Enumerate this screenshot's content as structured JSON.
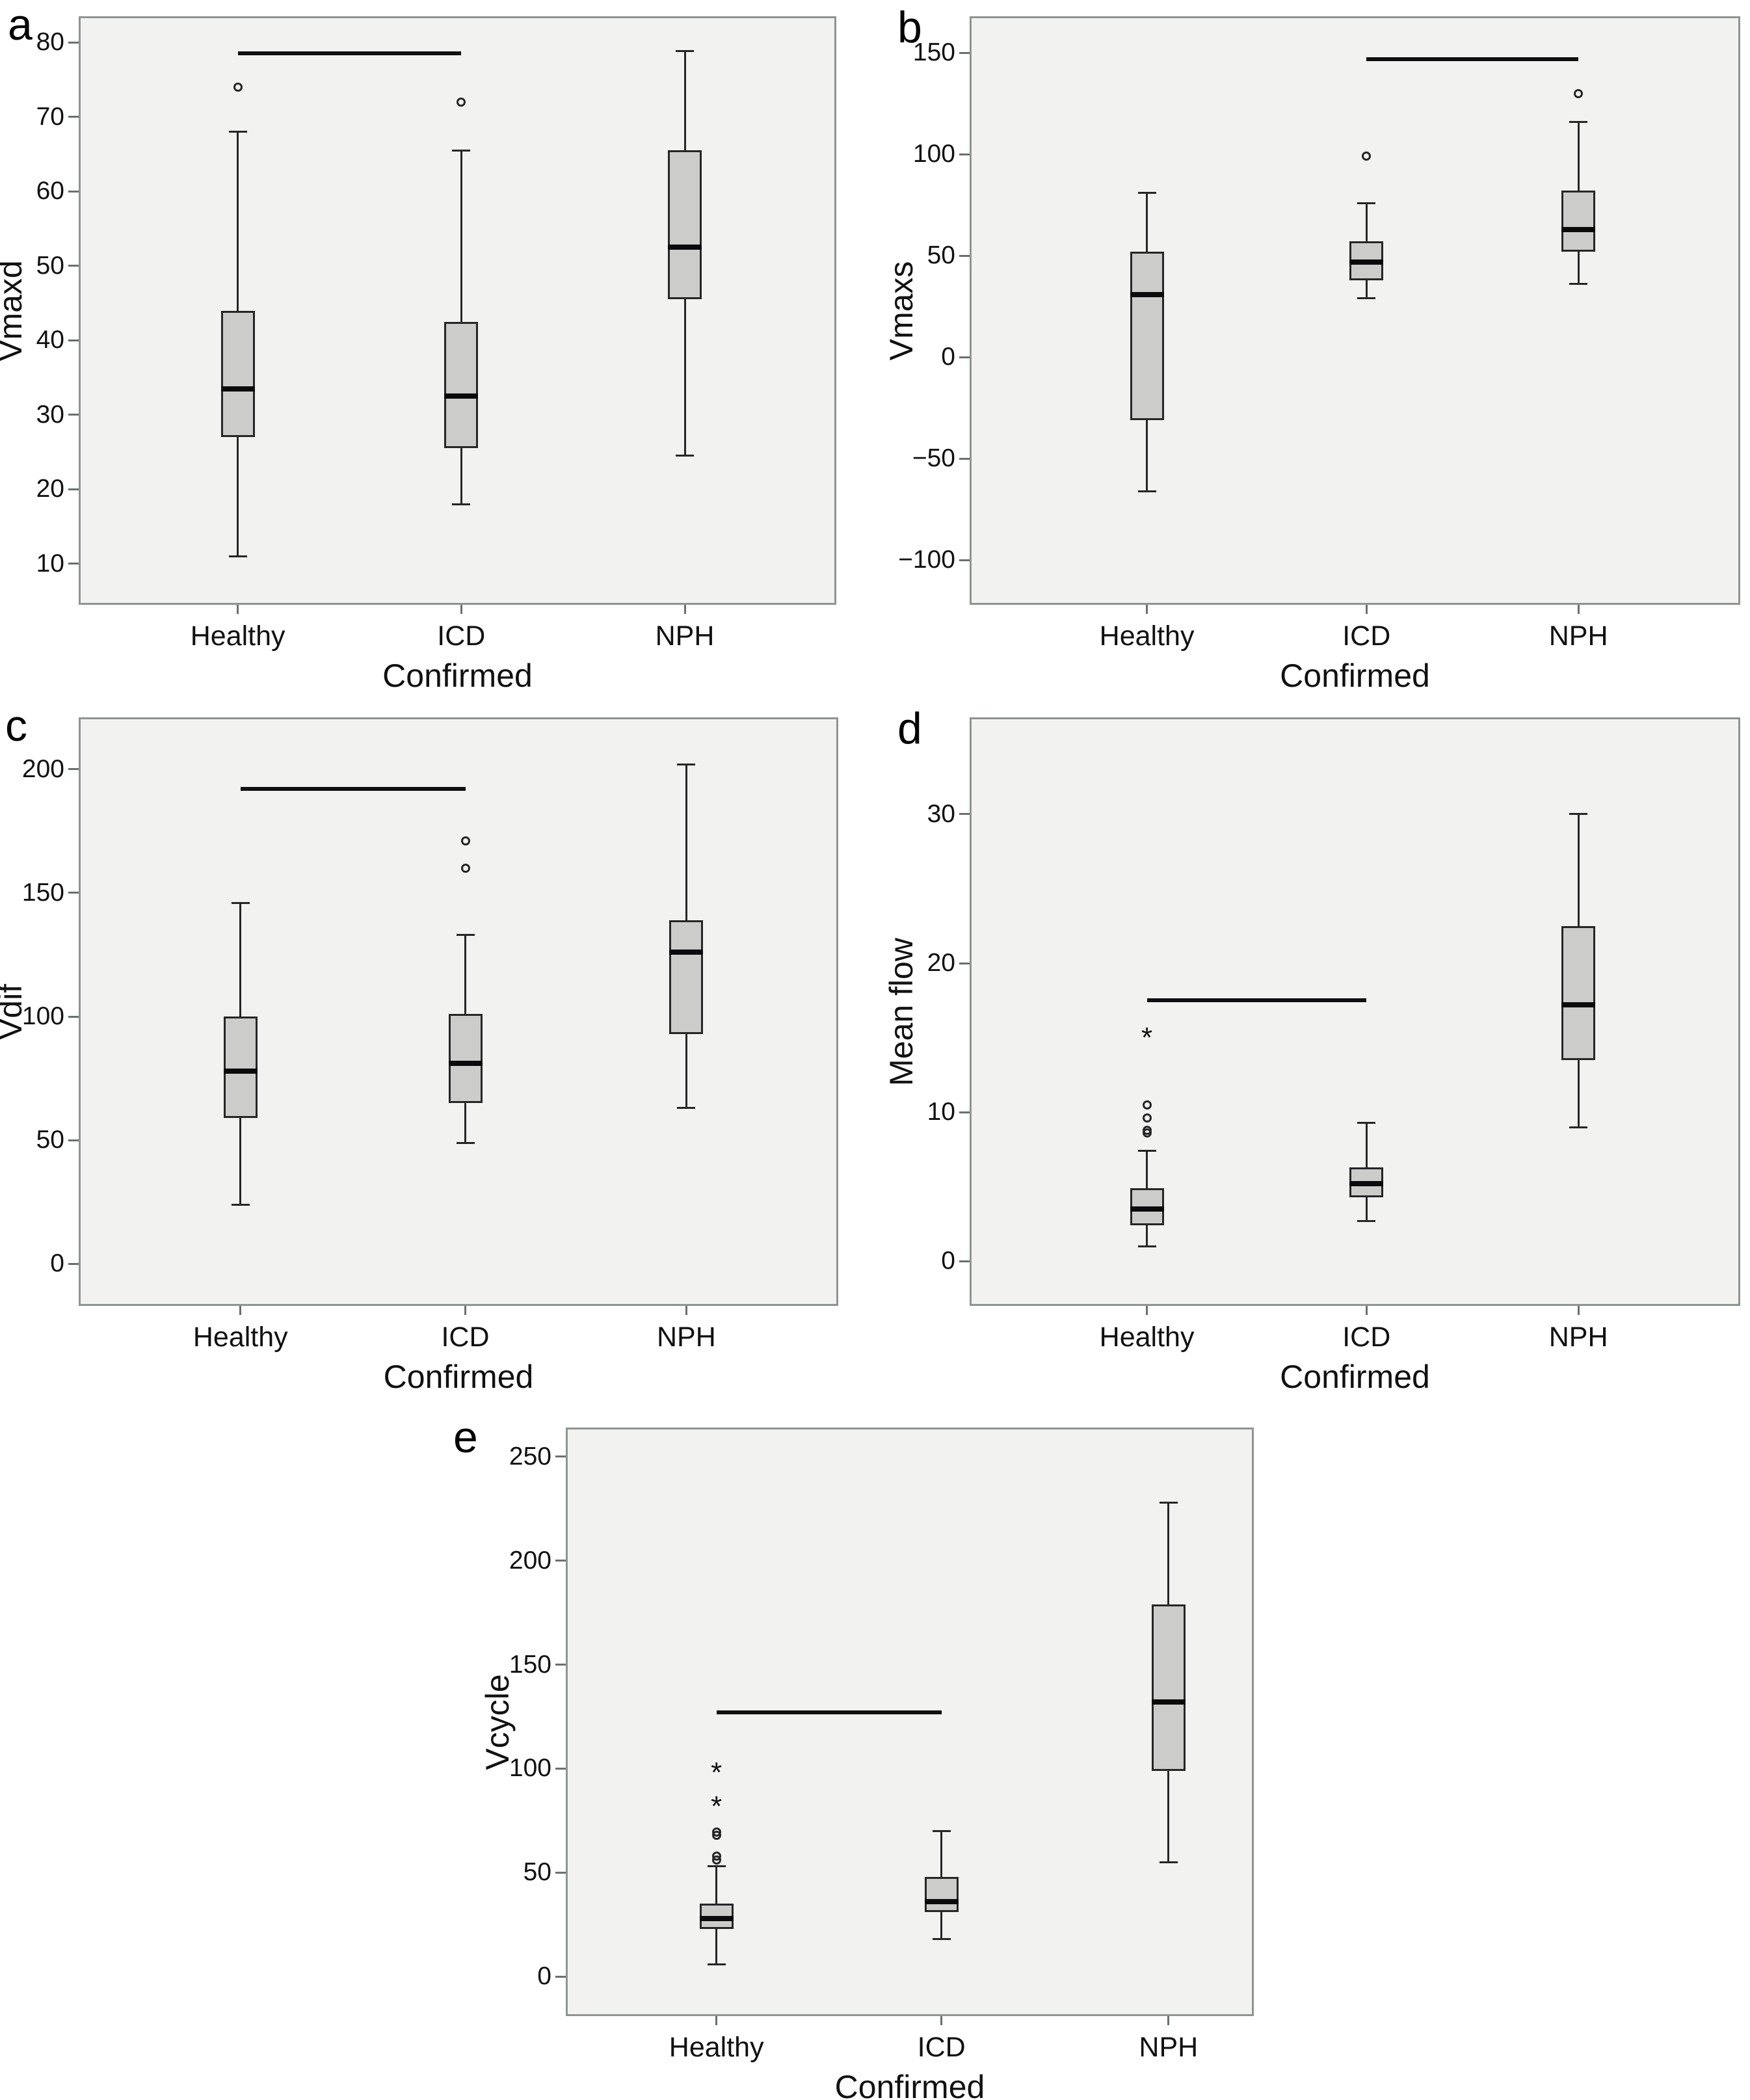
{
  "style": {
    "plot_background": "#f2f2f1",
    "box_fill": "#cccccb",
    "frame_color": "#8f9492",
    "line_color": "#262626",
    "median_color": "#0b0b0b"
  },
  "figure": {
    "xlabel": "Confirmed",
    "categories": [
      "Healthy",
      "ICD",
      "NPH"
    ],
    "panel_letters": [
      "a",
      "b",
      "c",
      "d",
      "e"
    ]
  },
  "chart_data": [
    {
      "panel_label": "a",
      "type": "box",
      "ylabel": "Vmaxd",
      "xlabel": "Confirmed",
      "categories": [
        "Healthy",
        "ICD",
        "NPH"
      ],
      "ylim": [
        4.5,
        83.5
      ],
      "yticks": [
        {
          "value": 80,
          "label": "80"
        },
        {
          "value": 70,
          "label": "70"
        },
        {
          "value": 60,
          "label": "60"
        },
        {
          "value": 50,
          "label": "50"
        },
        {
          "value": 40,
          "label": "40"
        },
        {
          "value": 30,
          "label": "30"
        },
        {
          "value": 20,
          "label": "20"
        },
        {
          "value": 10,
          "label": "10"
        }
      ],
      "boxes": [
        {
          "category": "Healthy",
          "whisker_low": 11,
          "q1": 27,
          "median": 33.5,
          "q3": 44,
          "whisker_high": 68,
          "outliers": [
            74
          ],
          "extremes": []
        },
        {
          "category": "ICD",
          "whisker_low": 18,
          "q1": 25.5,
          "median": 32.5,
          "q3": 42.5,
          "whisker_high": 65.5,
          "outliers": [
            72
          ],
          "extremes": []
        },
        {
          "category": "NPH",
          "whisker_low": 24.5,
          "q1": 45.5,
          "median": 52.5,
          "q3": 65.5,
          "whisker_high": 78.8,
          "outliers": [],
          "extremes": []
        }
      ],
      "significance_line": {
        "from": "Healthy",
        "to": "ICD",
        "y": 78.5
      }
    },
    {
      "panel_label": "b",
      "type": "box",
      "ylabel": "Vmaxs",
      "xlabel": "Confirmed",
      "categories": [
        "Healthy",
        "ICD",
        "NPH"
      ],
      "ylim": [
        -122,
        168
      ],
      "yticks": [
        {
          "value": 150,
          "label": "150"
        },
        {
          "value": 100,
          "label": "100"
        },
        {
          "value": 50,
          "label": "50"
        },
        {
          "value": 0,
          "label": "0"
        },
        {
          "value": -50,
          "label": "−50"
        },
        {
          "value": -100,
          "label": "−100"
        }
      ],
      "boxes": [
        {
          "category": "Healthy",
          "whisker_low": -66,
          "q1": -31,
          "median": 31,
          "q3": 52,
          "whisker_high": 81,
          "outliers": [],
          "extremes": []
        },
        {
          "category": "ICD",
          "whisker_low": 29,
          "q1": 38,
          "median": 47,
          "q3": 57,
          "whisker_high": 76,
          "outliers": [
            99
          ],
          "extremes": []
        },
        {
          "category": "NPH",
          "whisker_low": 36,
          "q1": 52,
          "median": 63,
          "q3": 82,
          "whisker_high": 116,
          "outliers": [
            130
          ],
          "extremes": []
        }
      ],
      "significance_line": {
        "from": "ICD",
        "to": "NPH",
        "y": 147
      }
    },
    {
      "panel_label": "c",
      "type": "box",
      "ylabel": "Vdif",
      "xlabel": "Confirmed",
      "categories": [
        "Healthy",
        "ICD",
        "NPH"
      ],
      "ylim": [
        -17,
        221
      ],
      "yticks": [
        {
          "value": 200,
          "label": "200"
        },
        {
          "value": 150,
          "label": "150"
        },
        {
          "value": 100,
          "label": "100"
        },
        {
          "value": 50,
          "label": "50"
        },
        {
          "value": 0,
          "label": "0"
        }
      ],
      "boxes": [
        {
          "category": "Healthy",
          "whisker_low": 24,
          "q1": 59,
          "median": 78,
          "q3": 100,
          "whisker_high": 146,
          "outliers": [],
          "extremes": []
        },
        {
          "category": "ICD",
          "whisker_low": 49,
          "q1": 65,
          "median": 81,
          "q3": 101,
          "whisker_high": 133,
          "outliers": [
            160,
            171
          ],
          "extremes": []
        },
        {
          "category": "NPH",
          "whisker_low": 63,
          "q1": 93,
          "median": 126,
          "q3": 139,
          "whisker_high": 202,
          "outliers": [],
          "extremes": []
        }
      ],
      "significance_line": {
        "from": "Healthy",
        "to": "ICD",
        "y": 192
      }
    },
    {
      "panel_label": "d",
      "type": "box",
      "ylabel": "Mean flow",
      "xlabel": "Confirmed",
      "categories": [
        "Healthy",
        "ICD",
        "NPH"
      ],
      "ylim": [
        -3,
        36.5
      ],
      "yticks": [
        {
          "value": 30,
          "label": "30"
        },
        {
          "value": 20,
          "label": "20"
        },
        {
          "value": 10,
          "label": "10"
        },
        {
          "value": 0,
          "label": "0"
        }
      ],
      "boxes": [
        {
          "category": "Healthy",
          "whisker_low": 1.0,
          "q1": 2.4,
          "median": 3.5,
          "q3": 4.9,
          "whisker_high": 7.4,
          "outliers": [
            8.6,
            8.8,
            9.6,
            10.5
          ],
          "extremes": [
            15.3
          ]
        },
        {
          "category": "ICD",
          "whisker_low": 2.7,
          "q1": 4.3,
          "median": 5.2,
          "q3": 6.3,
          "whisker_high": 9.3,
          "outliers": [],
          "extremes": []
        },
        {
          "category": "NPH",
          "whisker_low": 9,
          "q1": 13.5,
          "median": 17.2,
          "q3": 22.5,
          "whisker_high": 30,
          "outliers": [],
          "extremes": []
        }
      ],
      "significance_line": {
        "from": "Healthy",
        "to": "ICD",
        "y": 17.5
      }
    },
    {
      "panel_label": "e",
      "type": "box",
      "ylabel": "Vcycle",
      "xlabel": "Confirmed",
      "categories": [
        "Healthy",
        "ICD",
        "NPH"
      ],
      "ylim": [
        -19,
        264
      ],
      "yticks": [
        {
          "value": 250,
          "label": "250"
        },
        {
          "value": 200,
          "label": "200"
        },
        {
          "value": 150,
          "label": "150"
        },
        {
          "value": 100,
          "label": "100"
        },
        {
          "value": 50,
          "label": "50"
        },
        {
          "value": 0,
          "label": "0"
        }
      ],
      "boxes": [
        {
          "category": "Healthy",
          "whisker_low": 6,
          "q1": 23,
          "median": 28,
          "q3": 35,
          "whisker_high": 53,
          "outliers": [
            56,
            58,
            68,
            69.5
          ],
          "extremes": [
            84,
            100
          ]
        },
        {
          "category": "ICD",
          "whisker_low": 18,
          "q1": 31,
          "median": 36,
          "q3": 48,
          "whisker_high": 70,
          "outliers": [],
          "extremes": []
        },
        {
          "category": "NPH",
          "whisker_low": 55,
          "q1": 99,
          "median": 132,
          "q3": 179,
          "whisker_high": 228,
          "outliers": [],
          "extremes": []
        }
      ],
      "significance_line": {
        "from": "Healthy",
        "to": "ICD",
        "y": 127
      }
    }
  ]
}
